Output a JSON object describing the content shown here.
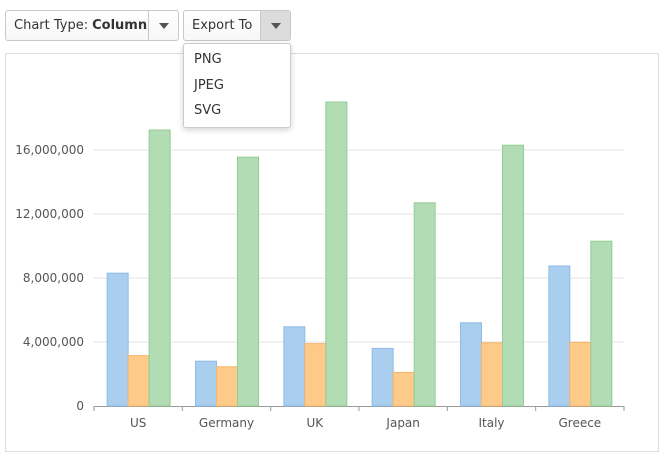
{
  "toolbar": {
    "chart_type_prefix": "Chart Type:",
    "chart_type_value": "Column",
    "export_label": "Export To"
  },
  "export_menu": {
    "items": [
      "PNG",
      "JPEG",
      "SVG"
    ]
  },
  "colors": {
    "series1": "#a9ceee",
    "series2": "#fdca8a",
    "series3": "#b2dcb3",
    "series1_stroke": "#8dbbe6",
    "series2_stroke": "#f5b56a",
    "series3_stroke": "#93cc95"
  },
  "icons": {
    "chart_type_caret": "chevron-down-icon",
    "export_caret": "chevron-down-icon"
  },
  "chart_data": {
    "type": "bar",
    "categories": [
      "US",
      "Germany",
      "UK",
      "Japan",
      "Italy",
      "Greece"
    ],
    "series": [
      {
        "values": [
          8300000,
          2800000,
          4950000,
          3600000,
          5200000,
          8750000
        ]
      },
      {
        "values": [
          3150000,
          2450000,
          3900000,
          2100000,
          3950000,
          3980000
        ]
      },
      {
        "values": [
          17250000,
          15550000,
          19000000,
          12700000,
          16300000,
          10300000
        ]
      }
    ],
    "yticks": [
      "0",
      "4,000,000",
      "8,000,000",
      "12,000,000",
      "16,000,000"
    ],
    "ylim": [
      0,
      20000000
    ],
    "grid": true,
    "legend": "none"
  }
}
